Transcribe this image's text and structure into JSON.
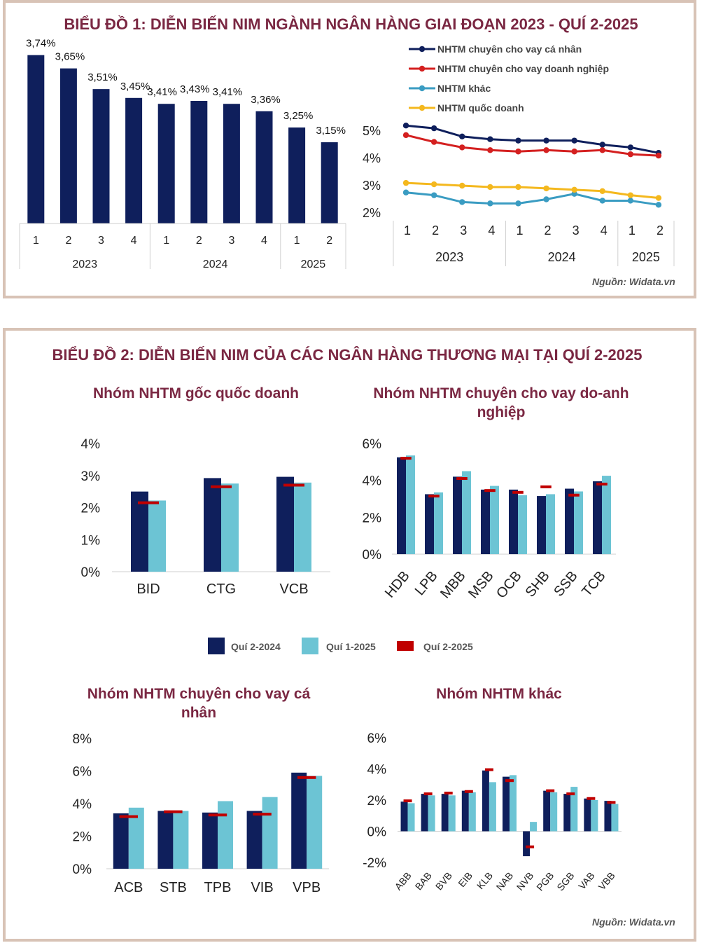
{
  "chart1": {
    "title": "BIỂU ĐỒ 1: DIỄN BIẾN NIM NGÀNH NGÂN HÀNG GIAI ĐOẠN 2023 - QUÍ 2-2025",
    "source": "Nguồn: Widata.vn"
  },
  "chart2": {
    "title": "BIỂU ĐỒ 2: DIỄN BIẾN NIM CỦA CÁC NGÂN HÀNG THƯƠNG MẠI TẠI QUÍ 2-2025",
    "source": "Nguồn: Widata.vn",
    "legend": [
      "Quí 2-2024",
      "Quí 1-2025",
      "Quí 2-2025"
    ]
  },
  "colors": {
    "navy": "#0f1f5c",
    "light": "#6cc4d4",
    "red": "#c00000",
    "title": "#7a2742",
    "line_red": "#d42020",
    "line_blue": "#3a9cc2",
    "line_yellow": "#f4b81e"
  },
  "chart_data": [
    {
      "type": "bar",
      "quarters": [
        "1",
        "2",
        "3",
        "4",
        "1",
        "2",
        "3",
        "4",
        "1",
        "2"
      ],
      "years": [
        "2023",
        "2024",
        "2025"
      ],
      "values": [
        3.74,
        3.65,
        3.51,
        3.45,
        3.41,
        3.43,
        3.41,
        3.36,
        3.25,
        3.15
      ],
      "labels": [
        "3,74%",
        "3,65%",
        "3,51%",
        "3,45%",
        "3,41%",
        "3,43%",
        "3,41%",
        "3,36%",
        "3,25%",
        "3,15%"
      ],
      "ylim": [
        2.6,
        3.8
      ]
    },
    {
      "type": "line",
      "quarters": [
        "1",
        "2",
        "3",
        "4",
        "1",
        "2",
        "3",
        "4",
        "1",
        "2"
      ],
      "years": [
        "2023",
        "2024",
        "2025"
      ],
      "yticks": [
        "5%",
        "4%",
        "3%",
        "2%"
      ],
      "ylim": [
        2,
        5
      ],
      "series": [
        {
          "name": "NHTM chuyên cho vay cá nhân",
          "values": [
            5.2,
            5.1,
            4.8,
            4.7,
            4.65,
            4.65,
            4.65,
            4.5,
            4.4,
            4.2
          ]
        },
        {
          "name": "NHTM chuyên cho vay doanh nghiệp",
          "values": [
            4.85,
            4.6,
            4.4,
            4.3,
            4.25,
            4.3,
            4.25,
            4.3,
            4.15,
            4.1
          ]
        },
        {
          "name": "NHTM khác",
          "values": [
            2.75,
            2.65,
            2.4,
            2.35,
            2.35,
            2.5,
            2.7,
            2.45,
            2.45,
            2.3
          ]
        },
        {
          "name": "NHTM quốc doanh",
          "values": [
            3.1,
            3.05,
            3.0,
            2.95,
            2.95,
            2.9,
            2.85,
            2.8,
            2.65,
            2.55
          ]
        }
      ]
    },
    {
      "type": "bar",
      "title": "Nhóm NHTM gốc quốc doanh",
      "categories": [
        "BID",
        "CTG",
        "VCB"
      ],
      "yticks": [
        "4%",
        "3%",
        "2%",
        "1%",
        "0%"
      ],
      "ylim": [
        0,
        4
      ],
      "series": [
        {
          "name": "Quí 2-2024",
          "values": [
            2.5,
            2.92,
            2.96
          ]
        },
        {
          "name": "Quí 1-2025",
          "values": [
            2.22,
            2.75,
            2.78
          ]
        },
        {
          "name": "Quí 2-2025",
          "values": [
            2.15,
            2.65,
            2.7
          ]
        }
      ]
    },
    {
      "type": "bar",
      "title": "Nhóm NHTM chuyên cho vay do-anh nghiệp",
      "categories": [
        "HDB",
        "LPB",
        "MBB",
        "MSB",
        "OCB",
        "SHB",
        "SSB",
        "TCB"
      ],
      "yticks": [
        "6%",
        "4%",
        "2%",
        "0%"
      ],
      "ylim": [
        0,
        6
      ],
      "series": [
        {
          "name": "Quí 2-2024",
          "values": [
            5.25,
            3.25,
            4.2,
            3.5,
            3.5,
            3.15,
            3.55,
            3.95
          ]
        },
        {
          "name": "Quí 1-2025",
          "values": [
            5.35,
            3.35,
            4.5,
            3.7,
            3.2,
            3.25,
            3.4,
            4.25
          ]
        },
        {
          "name": "Quí 2-2025",
          "values": [
            5.2,
            3.15,
            4.1,
            3.45,
            3.35,
            3.65,
            3.2,
            3.8
          ]
        }
      ]
    },
    {
      "type": "bar",
      "title": "Nhóm NHTM chuyên cho vay cá nhân",
      "categories": [
        "ACB",
        "STB",
        "TPB",
        "VIB",
        "VPB"
      ],
      "yticks": [
        "8%",
        "6%",
        "4%",
        "2%",
        "0%"
      ],
      "ylim": [
        0,
        8
      ],
      "series": [
        {
          "name": "Quí 2-2024",
          "values": [
            3.4,
            3.55,
            3.45,
            3.55,
            5.9
          ]
        },
        {
          "name": "Quí 1-2025",
          "values": [
            3.75,
            3.55,
            4.15,
            4.4,
            5.7
          ]
        },
        {
          "name": "Quí 2-2025",
          "values": [
            3.2,
            3.5,
            3.3,
            3.35,
            5.6
          ]
        }
      ]
    },
    {
      "type": "bar",
      "title": "Nhóm NHTM khác",
      "categories": [
        "ABB",
        "BAB",
        "BVB",
        "EIB",
        "KLB",
        "NAB",
        "NVB",
        "PGB",
        "SGB",
        "VAB",
        "VBB"
      ],
      "yticks": [
        "6%",
        "4%",
        "2%",
        "0%",
        "-2%"
      ],
      "ylim": [
        -2,
        6
      ],
      "series": [
        {
          "name": "Quí 2-2024",
          "values": [
            1.9,
            2.4,
            2.4,
            2.6,
            3.9,
            3.5,
            -1.6,
            2.6,
            2.4,
            2.1,
            1.95
          ]
        },
        {
          "name": "Quí 1-2025",
          "values": [
            1.8,
            2.3,
            2.3,
            2.5,
            3.15,
            3.6,
            0.6,
            2.5,
            2.85,
            2.0,
            1.75
          ]
        },
        {
          "name": "Quí 2-2025",
          "values": [
            1.95,
            2.4,
            2.45,
            2.55,
            3.95,
            3.25,
            -1.0,
            2.6,
            2.4,
            2.1,
            1.85
          ]
        }
      ]
    }
  ]
}
